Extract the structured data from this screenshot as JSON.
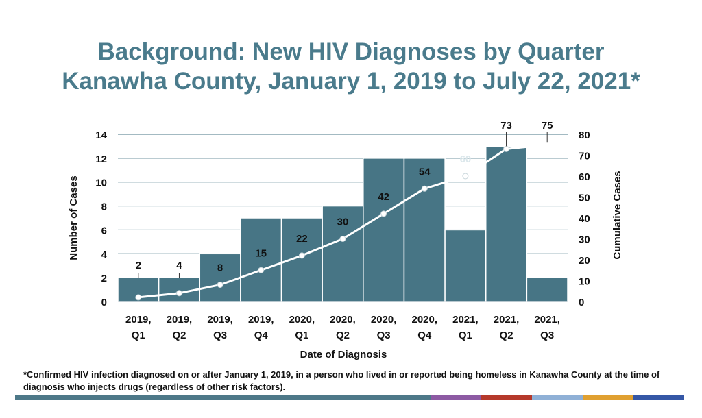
{
  "header": {
    "title_line1": "Background: New HIV Diagnoses by Quarter",
    "title_line2": "Kanawha County, January 1, 2019 to July 22, 2021*"
  },
  "footnote": "*Confirmed HIV infection diagnosed on or after January 1, 2019, in a person who lived in or reported being homeless in Kanawha County at the time of diagnosis who injects drugs (regardless of other risk factors).",
  "colors": {
    "bar": "#477585",
    "line": "#ffffff",
    "grid": "#477585",
    "footer_stripes": [
      "#4d7888",
      "#8d5aa3",
      "#b5392b",
      "#8fb0d6",
      "#e0a030",
      "#3557a6"
    ]
  },
  "chart_data": {
    "type": "bar",
    "xlabel": "Date of Diagnosis",
    "ylabel": "Number of Cases",
    "y2label": "Cumulative Cases",
    "ylim": [
      0,
      14
    ],
    "y2lim": [
      0,
      80
    ],
    "yticks": [
      "0",
      "2",
      "4",
      "6",
      "8",
      "10",
      "12",
      "14"
    ],
    "y2ticks": [
      "0",
      "10",
      "20",
      "30",
      "40",
      "50",
      "60",
      "70",
      "80"
    ],
    "grid": true,
    "categories": [
      [
        "2019,",
        "Q1"
      ],
      [
        "2019,",
        "Q2"
      ],
      [
        "2019,",
        "Q3"
      ],
      [
        "2019,",
        "Q4"
      ],
      [
        "2020,",
        "Q1"
      ],
      [
        "2020,",
        "Q2"
      ],
      [
        "2020,",
        "Q3"
      ],
      [
        "2020,",
        "Q4"
      ],
      [
        "2021,",
        "Q1"
      ],
      [
        "2021,",
        "Q2"
      ],
      [
        "2021,",
        "Q3"
      ]
    ],
    "series": [
      {
        "type": "bar",
        "values": [
          2,
          2,
          4,
          7,
          7,
          8,
          12,
          12,
          6,
          13,
          2
        ]
      },
      {
        "type": "line",
        "axis": "secondary",
        "values": [
          2,
          4,
          8,
          15,
          22,
          30,
          42,
          54,
          60,
          73,
          75
        ]
      }
    ],
    "data_labels": [
      "2",
      "4",
      "8",
      "15",
      "22",
      "30",
      "42",
      "54",
      "60",
      "73",
      "75"
    ]
  }
}
